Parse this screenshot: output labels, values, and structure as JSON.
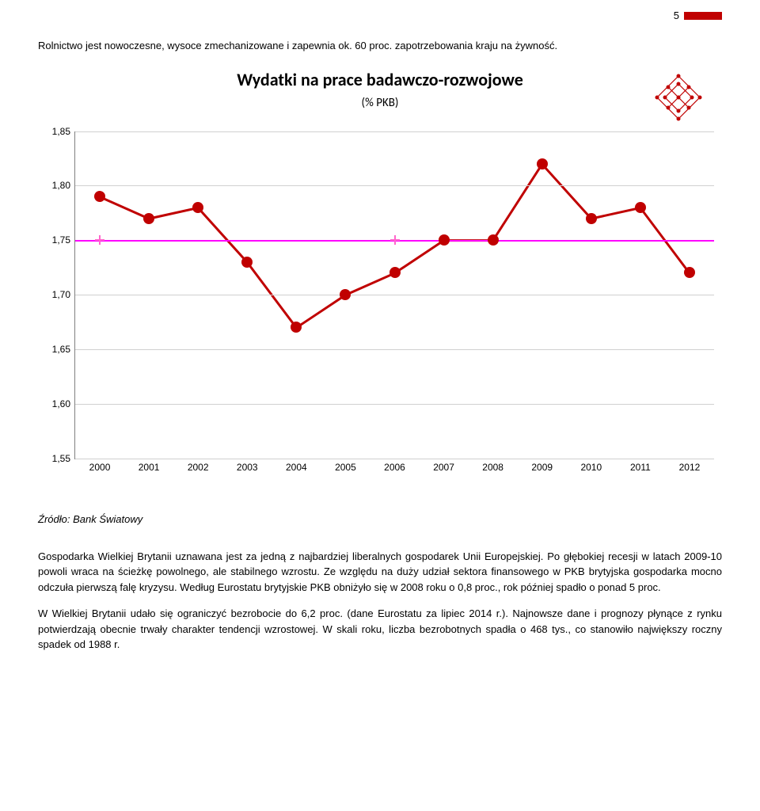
{
  "page_number": "5",
  "intro": "Rolnictwo jest nowoczesne, wysoce zmechanizowane i zapewnia ok. 60 proc. zapotrzebowania kraju na żywność.",
  "chart": {
    "type": "line",
    "title": "Wydatki na prace badawczo-rozwojowe",
    "subtitle": "(% PKB)",
    "x_labels": [
      "2000",
      "2001",
      "2002",
      "2003",
      "2004",
      "2005",
      "2006",
      "2007",
      "2008",
      "2009",
      "2010",
      "2011",
      "2012"
    ],
    "y_min": 1.55,
    "y_max": 1.85,
    "y_ticks": [
      1.55,
      1.6,
      1.65,
      1.7,
      1.75,
      1.8,
      1.85
    ],
    "y_tick_labels": [
      "1,55",
      "1,60",
      "1,65",
      "1,70",
      "1,75",
      "1,80",
      "1,85"
    ],
    "values": [
      1.79,
      1.77,
      1.78,
      1.73,
      1.67,
      1.7,
      1.72,
      1.75,
      1.75,
      1.82,
      1.77,
      1.78,
      1.72
    ],
    "avg_value": 1.75,
    "line_color": "#c00000",
    "line_width": 3,
    "marker_color": "#c00000",
    "marker_size": 14,
    "avg_line_color": "#ff00ff",
    "grid_color": "#d0d0d0",
    "background": "#ffffff",
    "logo_color": "#c00000"
  },
  "source": "Źródło: Bank Światowy",
  "para1": "Gospodarka Wielkiej Brytanii uznawana jest za jedną z najbardziej liberalnych gospodarek Unii Europejskiej. Po głębokiej recesji w latach 2009-10 powoli wraca na ścieżkę powolnego, ale stabilnego wzrostu. Ze względu na duży udział sektora finansowego w PKB brytyjska gospodarka mocno odczuła pierwszą falę kryzysu. Według Eurostatu brytyjskie PKB obniżyło się w 2008 roku o 0,8 proc., rok później spadło o ponad 5 proc.",
  "para2": "W Wielkiej Brytanii udało się ograniczyć bezrobocie do 6,2 proc. (dane Eurostatu za lipiec 2014 r.). Najnowsze dane i prognozy płynące z rynku potwierdzają obecnie trwały charakter tendencji wzrostowej. W skali roku, liczba bezrobotnych spadła o 468 tys., co stanowiło największy roczny spadek od 1988 r."
}
